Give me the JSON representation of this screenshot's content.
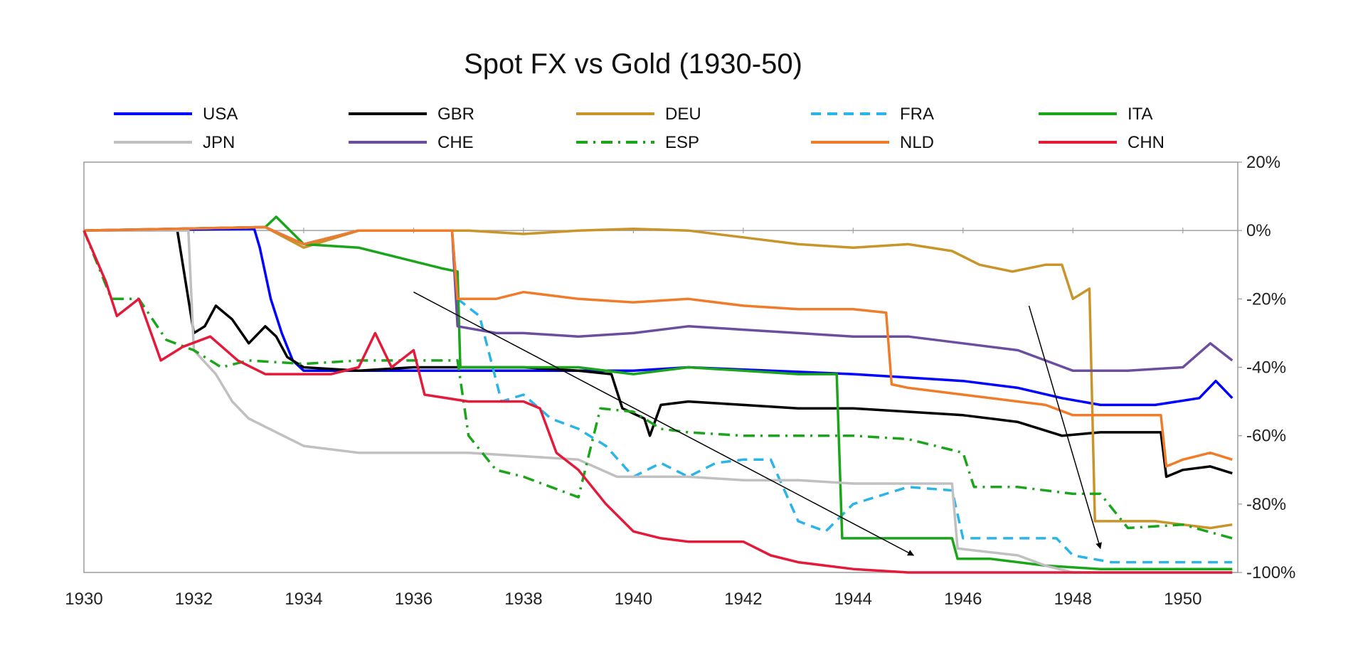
{
  "chart_data": {
    "type": "line",
    "title": "Spot FX vs Gold (1930-50)",
    "xlabel": "",
    "ylabel": "",
    "xlim": [
      1930,
      1951
    ],
    "ylim": [
      -100,
      20
    ],
    "x_ticks": [
      1930,
      1932,
      1934,
      1936,
      1938,
      1940,
      1942,
      1944,
      1946,
      1948,
      1950
    ],
    "y_ticks": [
      20,
      0,
      -20,
      -40,
      -60,
      -80,
      -100
    ],
    "y_tick_labels": [
      "20%",
      "0%",
      "-20%",
      "-40%",
      "-60%",
      "-80%",
      "-100%"
    ],
    "y_axis_side": "right",
    "legend_position": "top",
    "series": [
      {
        "name": "USA",
        "color": "#0000ff",
        "dash": "solid",
        "points": [
          [
            1930,
            0
          ],
          [
            1933.1,
            0.5
          ],
          [
            1933.2,
            -5
          ],
          [
            1933.4,
            -20
          ],
          [
            1933.6,
            -30
          ],
          [
            1933.8,
            -38
          ],
          [
            1934.0,
            -41
          ],
          [
            1936,
            -41
          ],
          [
            1938,
            -41
          ],
          [
            1940,
            -41
          ],
          [
            1941,
            -40
          ],
          [
            1942.5,
            -41
          ],
          [
            1944,
            -42
          ],
          [
            1945,
            -43
          ],
          [
            1946,
            -44
          ],
          [
            1947,
            -46
          ],
          [
            1947.8,
            -49
          ],
          [
            1948.5,
            -51
          ],
          [
            1949.5,
            -51
          ],
          [
            1950.3,
            -49
          ],
          [
            1950.6,
            -44
          ],
          [
            1950.9,
            -49
          ]
        ]
      },
      {
        "name": "GBR",
        "color": "#000000",
        "dash": "solid",
        "points": [
          [
            1930,
            0
          ],
          [
            1931.7,
            0
          ],
          [
            1931.85,
            -15
          ],
          [
            1932.0,
            -30
          ],
          [
            1932.2,
            -28
          ],
          [
            1932.4,
            -22
          ],
          [
            1932.7,
            -26
          ],
          [
            1933.0,
            -33
          ],
          [
            1933.3,
            -28
          ],
          [
            1933.5,
            -31
          ],
          [
            1933.7,
            -37
          ],
          [
            1934.0,
            -40
          ],
          [
            1935,
            -41
          ],
          [
            1936,
            -40
          ],
          [
            1937,
            -40
          ],
          [
            1938,
            -40
          ],
          [
            1939,
            -41
          ],
          [
            1939.6,
            -42
          ],
          [
            1939.8,
            -52
          ],
          [
            1940.2,
            -55
          ],
          [
            1940.3,
            -60
          ],
          [
            1940.5,
            -51
          ],
          [
            1941,
            -50
          ],
          [
            1942,
            -51
          ],
          [
            1943,
            -52
          ],
          [
            1944,
            -52
          ],
          [
            1945,
            -53
          ],
          [
            1946,
            -54
          ],
          [
            1947,
            -56
          ],
          [
            1947.8,
            -60
          ],
          [
            1948.5,
            -59
          ],
          [
            1949.6,
            -59
          ],
          [
            1949.7,
            -72
          ],
          [
            1950,
            -70
          ],
          [
            1950.5,
            -69
          ],
          [
            1950.9,
            -71
          ]
        ]
      },
      {
        "name": "DEU",
        "color": "#c9952b",
        "dash": "solid",
        "points": [
          [
            1930,
            0
          ],
          [
            1933.3,
            1
          ],
          [
            1934,
            -5
          ],
          [
            1935,
            0
          ],
          [
            1936,
            0
          ],
          [
            1937,
            0
          ],
          [
            1938,
            -1
          ],
          [
            1939,
            0
          ],
          [
            1940,
            0.5
          ],
          [
            1941,
            0
          ],
          [
            1942,
            -2
          ],
          [
            1943,
            -4
          ],
          [
            1944,
            -5
          ],
          [
            1945,
            -4
          ],
          [
            1945.8,
            -6
          ],
          [
            1946.3,
            -10
          ],
          [
            1946.9,
            -12
          ],
          [
            1947.5,
            -10
          ],
          [
            1947.8,
            -10
          ],
          [
            1948.0,
            -20
          ],
          [
            1948.3,
            -17
          ],
          [
            1948.4,
            -85
          ],
          [
            1949.5,
            -85
          ],
          [
            1950.5,
            -87
          ],
          [
            1950.9,
            -86
          ]
        ]
      },
      {
        "name": "FRA",
        "color": "#2ab4e8",
        "dash": "dash",
        "points": [
          [
            1930,
            0
          ],
          [
            1933.3,
            1
          ],
          [
            1934,
            -4
          ],
          [
            1935,
            0
          ],
          [
            1936.7,
            0
          ],
          [
            1936.8,
            -20
          ],
          [
            1937.2,
            -25
          ],
          [
            1937.6,
            -50
          ],
          [
            1938,
            -48
          ],
          [
            1938.5,
            -55
          ],
          [
            1939,
            -58
          ],
          [
            1939.5,
            -63
          ],
          [
            1940,
            -72
          ],
          [
            1940.5,
            -68
          ],
          [
            1941,
            -72
          ],
          [
            1941.5,
            -68
          ],
          [
            1942,
            -67
          ],
          [
            1942.5,
            -67
          ],
          [
            1943.0,
            -85
          ],
          [
            1943.5,
            -88
          ],
          [
            1944,
            -80
          ],
          [
            1945,
            -75
          ],
          [
            1945.8,
            -76
          ],
          [
            1946.0,
            -90
          ],
          [
            1947,
            -90
          ],
          [
            1947.7,
            -90
          ],
          [
            1948.0,
            -95
          ],
          [
            1948.7,
            -97
          ],
          [
            1950,
            -97
          ],
          [
            1950.9,
            -97
          ]
        ]
      },
      {
        "name": "ITA",
        "color": "#1aa51a",
        "dash": "solid",
        "points": [
          [
            1930,
            0
          ],
          [
            1933.3,
            1
          ],
          [
            1933.5,
            4
          ],
          [
            1934,
            -4
          ],
          [
            1935,
            -5
          ],
          [
            1936,
            -9
          ],
          [
            1936.5,
            -11
          ],
          [
            1936.8,
            -12
          ],
          [
            1936.85,
            -40
          ],
          [
            1938,
            -40
          ],
          [
            1939,
            -40
          ],
          [
            1940,
            -42
          ],
          [
            1941,
            -40
          ],
          [
            1942,
            -41
          ],
          [
            1943,
            -42
          ],
          [
            1943.7,
            -42
          ],
          [
            1943.8,
            -90
          ],
          [
            1945.8,
            -90
          ],
          [
            1945.9,
            -96
          ],
          [
            1946.5,
            -96
          ],
          [
            1947.5,
            -98
          ],
          [
            1948.5,
            -99
          ],
          [
            1950.9,
            -99
          ]
        ]
      },
      {
        "name": "JPN",
        "color": "#c0c0c0",
        "dash": "solid",
        "points": [
          [
            1930,
            0
          ],
          [
            1931.9,
            0
          ],
          [
            1932.0,
            -35
          ],
          [
            1932.4,
            -42
          ],
          [
            1932.7,
            -50
          ],
          [
            1933,
            -55
          ],
          [
            1934,
            -63
          ],
          [
            1935,
            -65
          ],
          [
            1936,
            -65
          ],
          [
            1937,
            -65
          ],
          [
            1938,
            -66
          ],
          [
            1939,
            -67
          ],
          [
            1939.7,
            -72
          ],
          [
            1941,
            -72
          ],
          [
            1942,
            -73
          ],
          [
            1943,
            -73
          ],
          [
            1944,
            -74
          ],
          [
            1945.5,
            -74
          ],
          [
            1945.8,
            -74
          ],
          [
            1945.9,
            -93
          ],
          [
            1947,
            -95
          ],
          [
            1947.5,
            -98
          ],
          [
            1948,
            -100
          ],
          [
            1950.9,
            -100
          ]
        ]
      },
      {
        "name": "CHE",
        "color": "#6b4f9e",
        "dash": "solid",
        "points": [
          [
            1930,
            0
          ],
          [
            1933.3,
            1
          ],
          [
            1934,
            -4
          ],
          [
            1935,
            0
          ],
          [
            1936.7,
            0
          ],
          [
            1936.8,
            -28
          ],
          [
            1937.5,
            -30
          ],
          [
            1938,
            -30
          ],
          [
            1939,
            -31
          ],
          [
            1940,
            -30
          ],
          [
            1941,
            -28
          ],
          [
            1942,
            -29
          ],
          [
            1943,
            -30
          ],
          [
            1944,
            -31
          ],
          [
            1945,
            -31
          ],
          [
            1946,
            -33
          ],
          [
            1947,
            -35
          ],
          [
            1947.5,
            -38
          ],
          [
            1948,
            -41
          ],
          [
            1949,
            -41
          ],
          [
            1950,
            -40
          ],
          [
            1950.5,
            -33
          ],
          [
            1950.9,
            -38
          ]
        ]
      },
      {
        "name": "ESP",
        "color": "#1aa51a",
        "dash": "dashdot",
        "points": [
          [
            1930,
            0
          ],
          [
            1930.5,
            -20
          ],
          [
            1931,
            -20
          ],
          [
            1931.5,
            -32
          ],
          [
            1932,
            -35
          ],
          [
            1932.5,
            -40
          ],
          [
            1933,
            -38
          ],
          [
            1934,
            -39
          ],
          [
            1935,
            -38
          ],
          [
            1936,
            -38
          ],
          [
            1936.8,
            -38
          ],
          [
            1937,
            -60
          ],
          [
            1937.5,
            -70
          ],
          [
            1938,
            -72
          ],
          [
            1938.5,
            -75
          ],
          [
            1939,
            -78
          ],
          [
            1939.4,
            -52
          ],
          [
            1940,
            -53
          ],
          [
            1940.5,
            -58
          ],
          [
            1941,
            -59
          ],
          [
            1942,
            -60
          ],
          [
            1943,
            -60
          ],
          [
            1944,
            -60
          ],
          [
            1945,
            -61
          ],
          [
            1945.5,
            -63
          ],
          [
            1946,
            -65
          ],
          [
            1946.2,
            -75
          ],
          [
            1947,
            -75
          ],
          [
            1948,
            -77
          ],
          [
            1948.5,
            -77
          ],
          [
            1949.0,
            -87
          ],
          [
            1950,
            -86
          ],
          [
            1950.9,
            -90
          ]
        ]
      },
      {
        "name": "NLD",
        "color": "#f07c2a",
        "dash": "solid",
        "points": [
          [
            1930,
            0
          ],
          [
            1933.3,
            1
          ],
          [
            1934,
            -4
          ],
          [
            1935,
            0
          ],
          [
            1936.7,
            0
          ],
          [
            1936.8,
            -20
          ],
          [
            1937.5,
            -20
          ],
          [
            1938,
            -18
          ],
          [
            1939,
            -20
          ],
          [
            1940,
            -21
          ],
          [
            1941,
            -20
          ],
          [
            1942,
            -22
          ],
          [
            1943,
            -23
          ],
          [
            1944,
            -23
          ],
          [
            1944.6,
            -24
          ],
          [
            1944.7,
            -45
          ],
          [
            1945,
            -46
          ],
          [
            1946,
            -48
          ],
          [
            1947,
            -50
          ],
          [
            1947.5,
            -51
          ],
          [
            1948,
            -54
          ],
          [
            1949.6,
            -54
          ],
          [
            1949.7,
            -69
          ],
          [
            1950,
            -67
          ],
          [
            1950.5,
            -65
          ],
          [
            1950.9,
            -67
          ]
        ]
      },
      {
        "name": "CHN",
        "color": "#e31a3a",
        "dash": "solid",
        "points": [
          [
            1930,
            0
          ],
          [
            1930.4,
            -15
          ],
          [
            1930.6,
            -25
          ],
          [
            1931,
            -20
          ],
          [
            1931.4,
            -38
          ],
          [
            1931.8,
            -34
          ],
          [
            1932.3,
            -31
          ],
          [
            1932.8,
            -38
          ],
          [
            1933.3,
            -42
          ],
          [
            1934,
            -42
          ],
          [
            1934.5,
            -42
          ],
          [
            1935,
            -40
          ],
          [
            1935.3,
            -30
          ],
          [
            1935.6,
            -40
          ],
          [
            1936,
            -35
          ],
          [
            1936.2,
            -48
          ],
          [
            1937,
            -50
          ],
          [
            1938,
            -50
          ],
          [
            1938.3,
            -52
          ],
          [
            1938.6,
            -65
          ],
          [
            1939,
            -70
          ],
          [
            1939.5,
            -80
          ],
          [
            1940,
            -88
          ],
          [
            1940.5,
            -90
          ],
          [
            1941,
            -91
          ],
          [
            1942,
            -91
          ],
          [
            1942.5,
            -95
          ],
          [
            1943,
            -97
          ],
          [
            1944,
            -99
          ],
          [
            1945,
            -100
          ],
          [
            1950.9,
            -100
          ]
        ]
      }
    ],
    "annotations": [
      {
        "type": "arrow",
        "from": [
          1936,
          -18
        ],
        "to": [
          1945.1,
          -95
        ]
      },
      {
        "type": "arrow",
        "from": [
          1947.2,
          -22
        ],
        "to": [
          1948.5,
          -93
        ]
      }
    ]
  }
}
